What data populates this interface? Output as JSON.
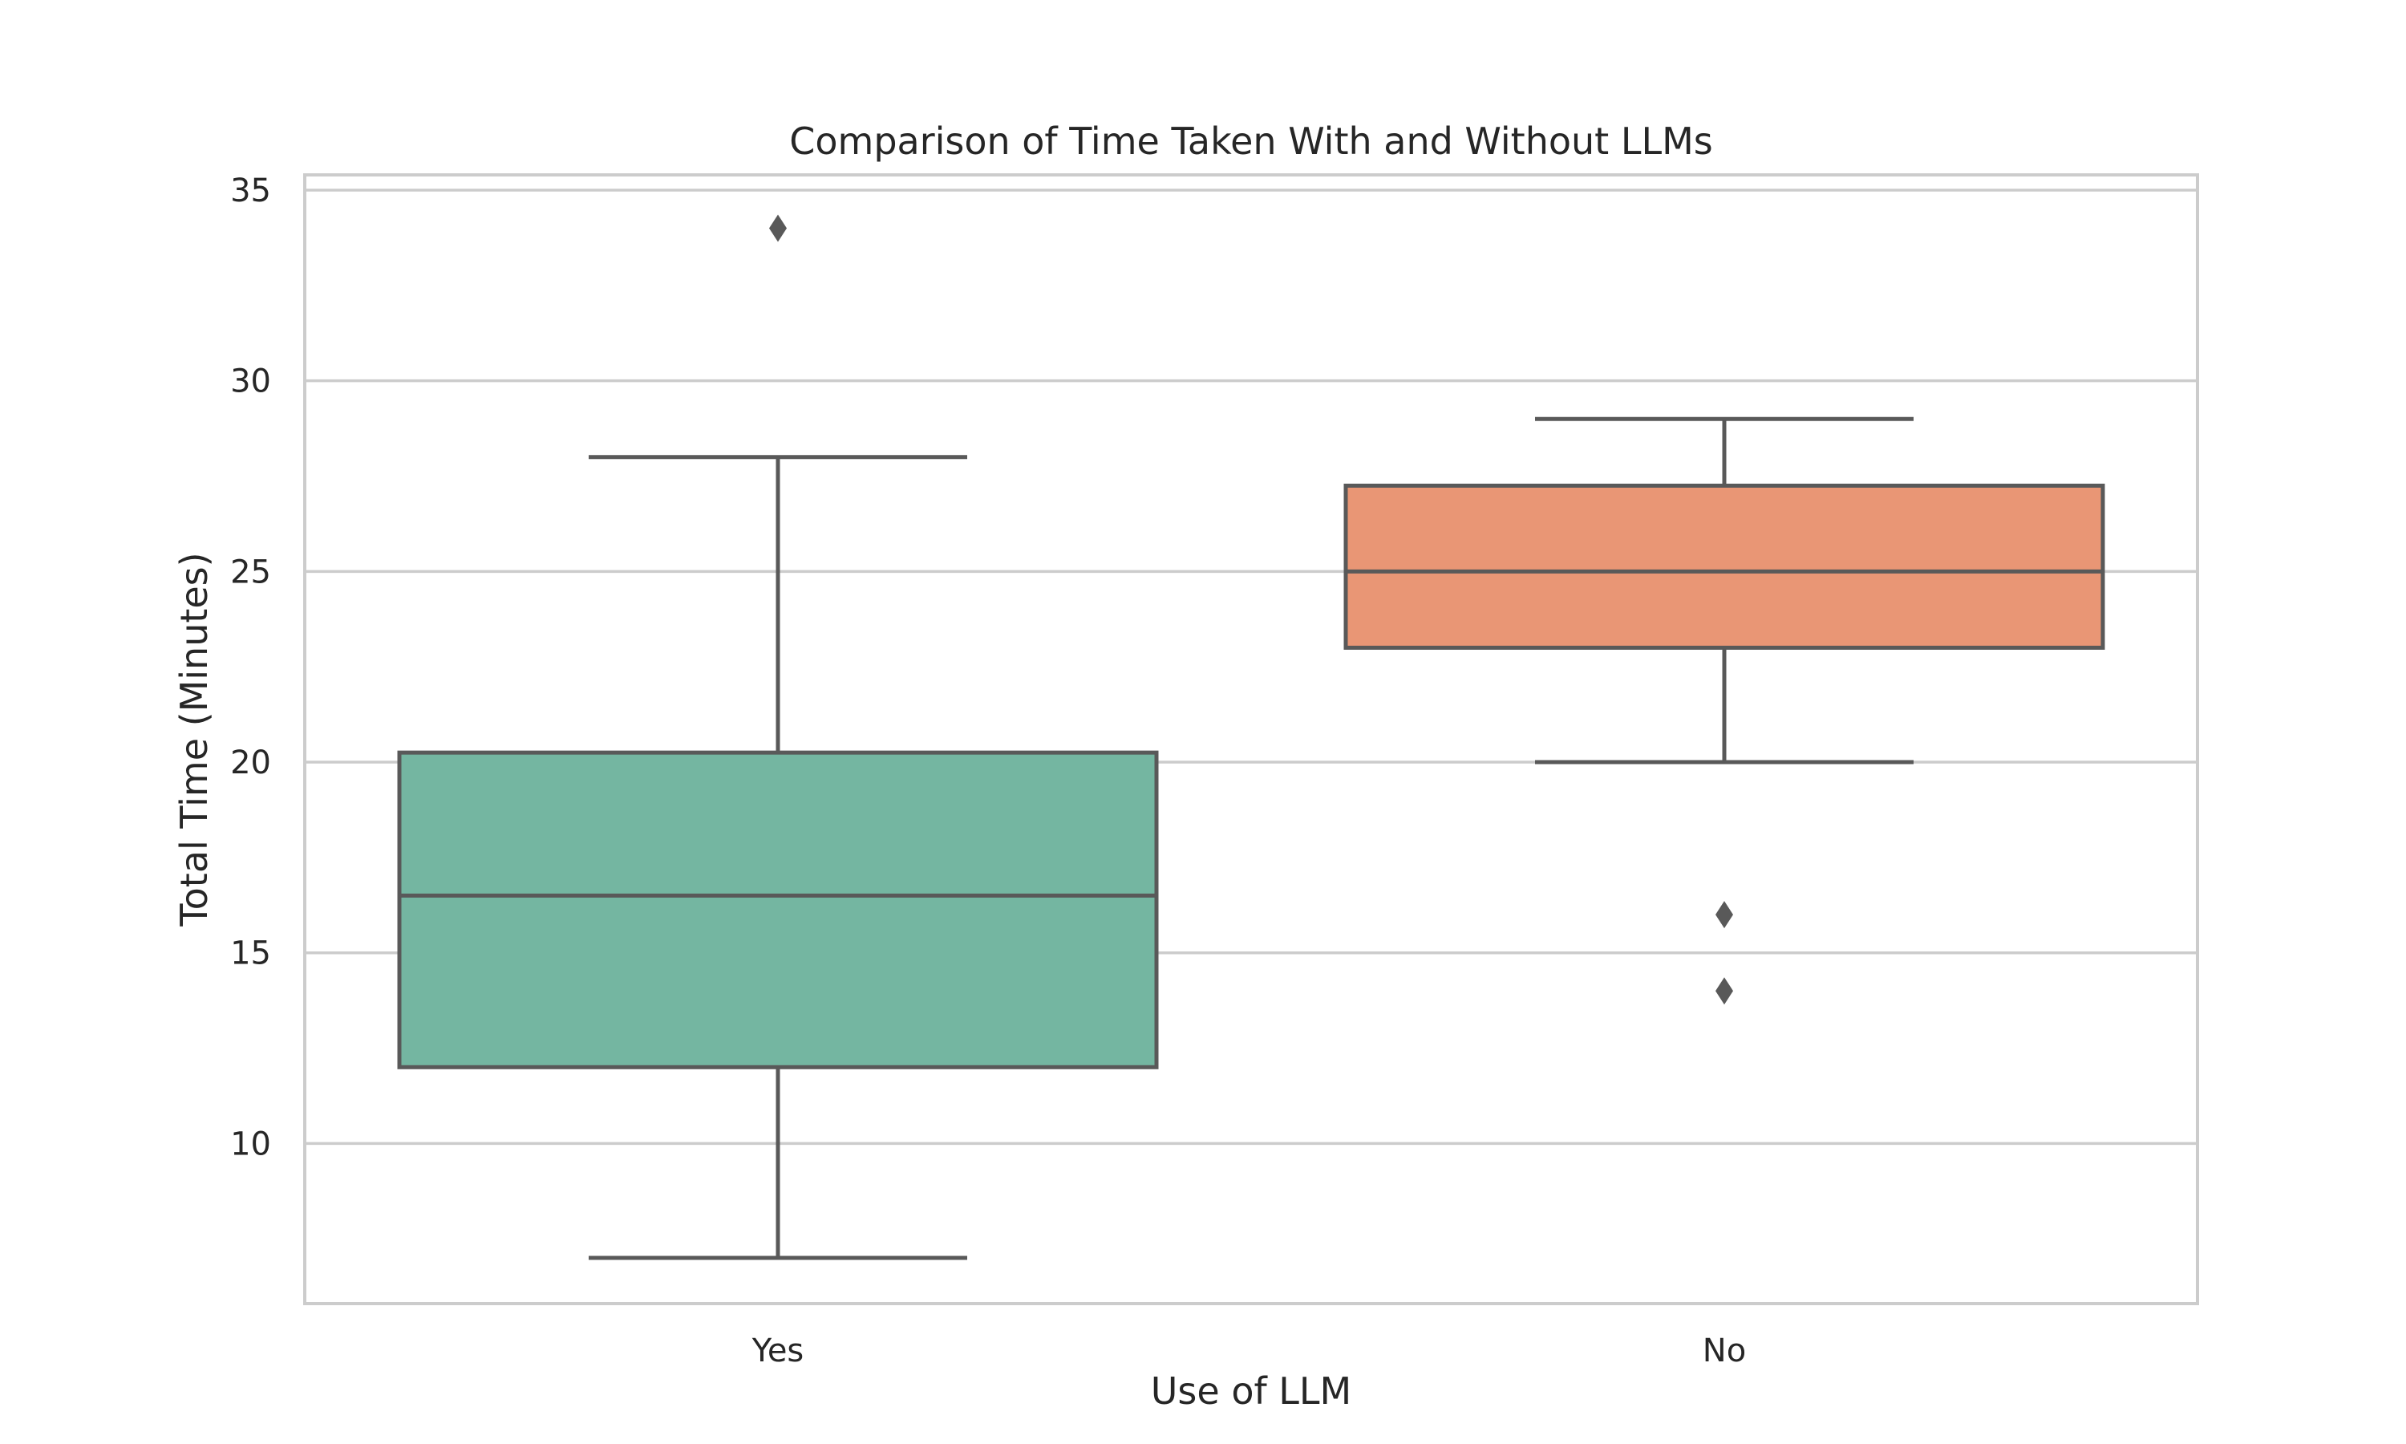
{
  "chart_data": {
    "type": "box",
    "title": "Comparison of Time Taken With and Without LLMs",
    "xlabel": "Use of LLM",
    "ylabel": "Total Time (Minutes)",
    "ylim": [
      5.8,
      35.4
    ],
    "yticks": [
      10,
      15,
      20,
      25,
      30,
      35
    ],
    "grid": true,
    "categories": [
      "Yes",
      "No"
    ],
    "boxes": [
      {
        "category": "Yes",
        "whisker_low": 7,
        "q1": 12,
        "median": 16.5,
        "q3": 20.25,
        "whisker_high": 28,
        "outliers": [
          34
        ],
        "color": "#74b6a1"
      },
      {
        "category": "No",
        "whisker_low": 20,
        "q1": 23,
        "median": 25,
        "q3": 27.25,
        "whisker_high": 29,
        "outliers": [
          16,
          14
        ],
        "color": "#e99675"
      }
    ],
    "colors": {
      "line": "#595959",
      "grid": "#cccccc",
      "frame": "#cccccc",
      "text": "#262626"
    }
  }
}
